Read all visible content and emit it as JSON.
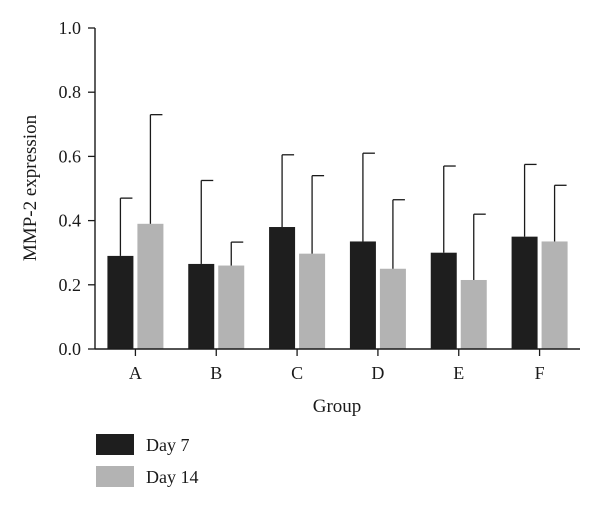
{
  "chart_data": {
    "type": "bar",
    "categories": [
      "A",
      "B",
      "C",
      "D",
      "E",
      "F"
    ],
    "series": [
      {
        "name": "Day 7",
        "color": "#1e1e1e",
        "values": [
          0.29,
          0.265,
          0.38,
          0.335,
          0.3,
          0.35
        ],
        "error_upper": [
          0.47,
          0.525,
          0.605,
          0.61,
          0.57,
          0.575
        ]
      },
      {
        "name": "Day 14",
        "color": "#b3b3b3",
        "values": [
          0.39,
          0.26,
          0.297,
          0.25,
          0.215,
          0.335
        ],
        "error_upper": [
          0.73,
          0.333,
          0.54,
          0.465,
          0.42,
          0.51
        ]
      }
    ],
    "xlabel": "Group",
    "ylabel": "MMP-2 expression",
    "ylim": [
      0,
      1.0
    ],
    "yticks": [
      "0.0",
      "0.2",
      "0.4",
      "0.6",
      "0.8",
      "1.0"
    ],
    "legend_position": "bottom-left",
    "grid": false
  }
}
